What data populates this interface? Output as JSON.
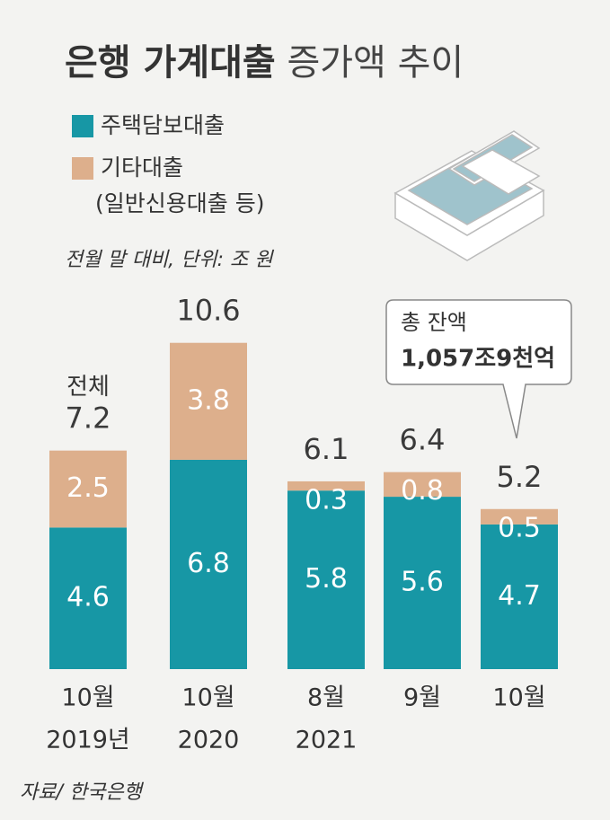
{
  "chart_data": {
    "type": "stacked_bar",
    "title_parts": [
      "은행 가계대출",
      "증가액 추이"
    ],
    "subtitle": "전월 말 대비, 단위: 조 원",
    "categories": [
      "10월",
      "10월",
      "8월",
      "9월",
      "10월"
    ],
    "years": [
      "2019년",
      "2020",
      "2021"
    ],
    "series": [
      {
        "name": "주택담보대출",
        "color": "#1797a5",
        "values": [
          4.6,
          6.8,
          5.8,
          5.6,
          4.7
        ]
      },
      {
        "name": "기타대출",
        "name_note": "(일반신용대출 등)",
        "color": "#ddaf8c",
        "values": [
          2.5,
          3.8,
          0.3,
          0.8,
          0.5
        ]
      }
    ],
    "totals": [
      7.2,
      10.6,
      6.1,
      6.4,
      5.2
    ],
    "total_caption": "전체",
    "ylim": [
      0,
      11
    ],
    "annotation": [
      "총 잔액",
      "1,057조9천억"
    ],
    "source": "자료/ 한국은행"
  }
}
